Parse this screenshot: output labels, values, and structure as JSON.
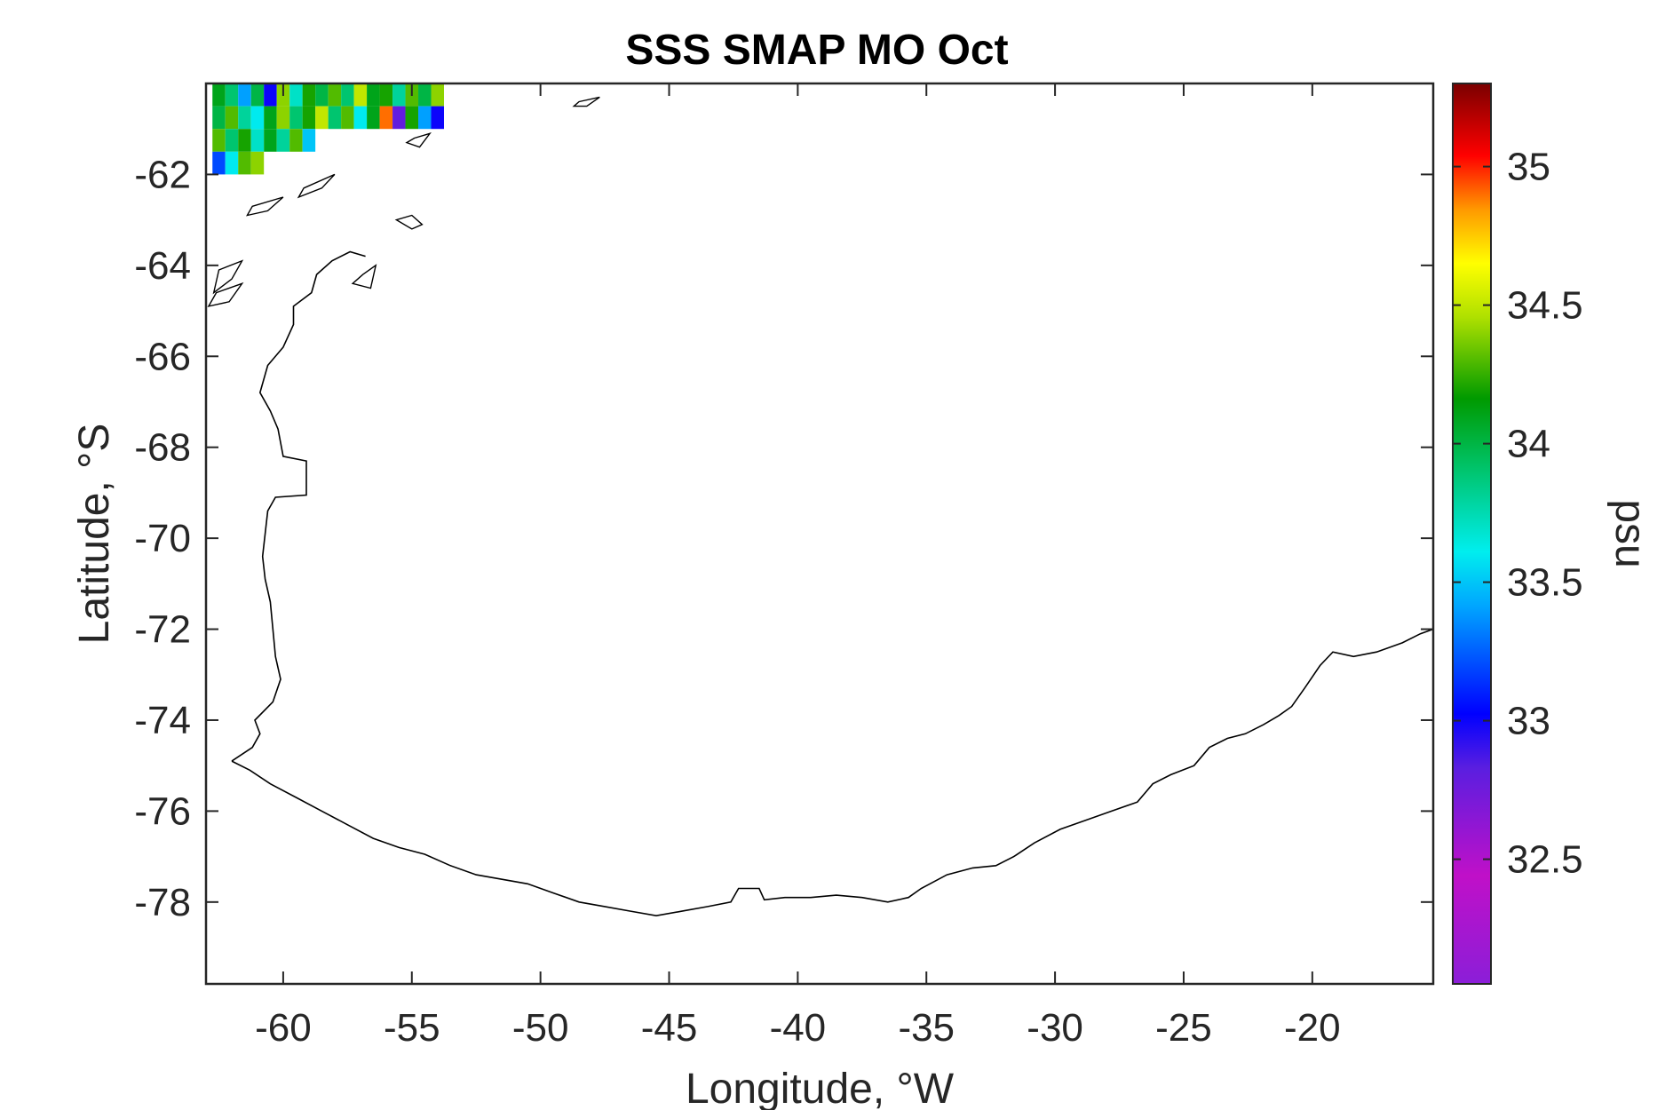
{
  "chart_data": {
    "type": "heatmap",
    "title": "SSS SMAP MO Oct",
    "xlabel": "Longitude, °W",
    "ylabel": "Latitude, °S",
    "xlim": [
      -63,
      -15.3
    ],
    "ylim": [
      -79.8,
      -60.0
    ],
    "x_ticks": [
      -60,
      -55,
      -50,
      -45,
      -40,
      -35,
      -30,
      -25,
      -20
    ],
    "x_tick_labels": [
      "-60",
      "-55",
      "-50",
      "-45",
      "-40",
      "-35",
      "-30",
      "-25",
      "-20"
    ],
    "y_ticks": [
      -62,
      -64,
      -66,
      -68,
      -70,
      -72,
      -74,
      -76,
      -78
    ],
    "y_tick_labels": [
      "-62",
      "-64",
      "-66",
      "-68",
      "-70",
      "-72",
      "-74",
      "-76",
      "-78"
    ],
    "grid": false,
    "colorbar": {
      "label": "psu",
      "range": [
        32.05,
        35.3
      ],
      "ticks": [
        32.5,
        33,
        33.5,
        34,
        34.5,
        35
      ],
      "tick_labels": [
        "32.5",
        "33",
        "33.5",
        "34",
        "34.5",
        "35"
      ]
    },
    "cells": [
      {
        "lon": -62.5,
        "lat": -60.25,
        "v": 34.1
      },
      {
        "lon": -62.0,
        "lat": -60.25,
        "v": 33.9
      },
      {
        "lon": -61.5,
        "lat": -60.25,
        "v": 33.4
      },
      {
        "lon": -61.0,
        "lat": -60.25,
        "v": 34.0
      },
      {
        "lon": -60.5,
        "lat": -60.25,
        "v": 33.0
      },
      {
        "lon": -60.0,
        "lat": -60.25,
        "v": 34.4
      },
      {
        "lon": -59.5,
        "lat": -60.25,
        "v": 33.7
      },
      {
        "lon": -59.0,
        "lat": -60.25,
        "v": 34.2
      },
      {
        "lon": -58.5,
        "lat": -60.25,
        "v": 34.0
      },
      {
        "lon": -58.0,
        "lat": -60.25,
        "v": 34.3
      },
      {
        "lon": -57.5,
        "lat": -60.25,
        "v": 33.9
      },
      {
        "lon": -57.0,
        "lat": -60.25,
        "v": 34.5
      },
      {
        "lon": -56.5,
        "lat": -60.25,
        "v": 34.1
      },
      {
        "lon": -56.0,
        "lat": -60.25,
        "v": 34.2
      },
      {
        "lon": -55.5,
        "lat": -60.25,
        "v": 33.8
      },
      {
        "lon": -55.0,
        "lat": -60.25,
        "v": 34.3
      },
      {
        "lon": -54.5,
        "lat": -60.25,
        "v": 34.0
      },
      {
        "lon": -54.0,
        "lat": -60.25,
        "v": 34.4
      },
      {
        "lon": -62.5,
        "lat": -60.75,
        "v": 34.0
      },
      {
        "lon": -62.0,
        "lat": -60.75,
        "v": 34.3
      },
      {
        "lon": -61.5,
        "lat": -60.75,
        "v": 33.8
      },
      {
        "lon": -61.0,
        "lat": -60.75,
        "v": 33.6
      },
      {
        "lon": -60.5,
        "lat": -60.75,
        "v": 34.1
      },
      {
        "lon": -60.0,
        "lat": -60.75,
        "v": 34.4
      },
      {
        "lon": -59.5,
        "lat": -60.75,
        "v": 33.9
      },
      {
        "lon": -59.0,
        "lat": -60.75,
        "v": 34.2
      },
      {
        "lon": -58.5,
        "lat": -60.75,
        "v": 34.5
      },
      {
        "lon": -58.0,
        "lat": -60.75,
        "v": 33.9
      },
      {
        "lon": -57.5,
        "lat": -60.75,
        "v": 34.3
      },
      {
        "lon": -57.0,
        "lat": -60.75,
        "v": 33.6
      },
      {
        "lon": -56.5,
        "lat": -60.75,
        "v": 34.1
      },
      {
        "lon": -56.0,
        "lat": -60.75,
        "v": 34.9
      },
      {
        "lon": -55.5,
        "lat": -60.75,
        "v": 32.8
      },
      {
        "lon": -55.0,
        "lat": -60.75,
        "v": 34.2
      },
      {
        "lon": -54.5,
        "lat": -60.75,
        "v": 33.4
      },
      {
        "lon": -54.0,
        "lat": -60.75,
        "v": 33.0
      },
      {
        "lon": -62.5,
        "lat": -61.25,
        "v": 34.3
      },
      {
        "lon": -62.0,
        "lat": -61.25,
        "v": 33.9
      },
      {
        "lon": -61.5,
        "lat": -61.25,
        "v": 34.2
      },
      {
        "lon": -61.0,
        "lat": -61.25,
        "v": 33.7
      },
      {
        "lon": -60.5,
        "lat": -61.25,
        "v": 34.1
      },
      {
        "lon": -60.0,
        "lat": -61.25,
        "v": 33.8
      },
      {
        "lon": -59.5,
        "lat": -61.25,
        "v": 34.3
      },
      {
        "lon": -59.0,
        "lat": -61.25,
        "v": 33.5
      },
      {
        "lon": -62.5,
        "lat": -61.75,
        "v": 33.2
      },
      {
        "lon": -62.0,
        "lat": -61.75,
        "v": 33.6
      },
      {
        "lon": -61.5,
        "lat": -61.75,
        "v": 34.3
      },
      {
        "lon": -61.0,
        "lat": -61.75,
        "v": 34.4
      }
    ],
    "coastline": [
      [
        -62.0,
        -74.9
      ],
      [
        -61.3,
        -75.1
      ],
      [
        -60.5,
        -75.4
      ],
      [
        -59.5,
        -75.7
      ],
      [
        -58.5,
        -76.0
      ],
      [
        -57.5,
        -76.3
      ],
      [
        -56.5,
        -76.6
      ],
      [
        -55.5,
        -76.8
      ],
      [
        -54.5,
        -76.95
      ],
      [
        -53.5,
        -77.2
      ],
      [
        -52.5,
        -77.4
      ],
      [
        -51.5,
        -77.5
      ],
      [
        -50.5,
        -77.6
      ],
      [
        -49.5,
        -77.8
      ],
      [
        -48.5,
        -78.0
      ],
      [
        -47.5,
        -78.1
      ],
      [
        -46.5,
        -78.2
      ],
      [
        -45.5,
        -78.3
      ],
      [
        -44.5,
        -78.2
      ],
      [
        -43.5,
        -78.1
      ],
      [
        -42.6,
        -78.0
      ],
      [
        -42.3,
        -77.7
      ],
      [
        -41.5,
        -77.7
      ],
      [
        -41.3,
        -77.95
      ],
      [
        -40.5,
        -77.9
      ],
      [
        -39.5,
        -77.9
      ],
      [
        -38.5,
        -77.85
      ],
      [
        -37.5,
        -77.9
      ],
      [
        -36.5,
        -78.0
      ],
      [
        -35.7,
        -77.9
      ],
      [
        -35.2,
        -77.7
      ],
      [
        -34.2,
        -77.4
      ],
      [
        -33.2,
        -77.25
      ],
      [
        -32.3,
        -77.2
      ],
      [
        -31.6,
        -77.0
      ],
      [
        -30.8,
        -76.7
      ],
      [
        -29.8,
        -76.4
      ],
      [
        -28.8,
        -76.2
      ],
      [
        -27.8,
        -76.0
      ],
      [
        -26.8,
        -75.8
      ],
      [
        -26.2,
        -75.4
      ],
      [
        -25.5,
        -75.2
      ],
      [
        -24.6,
        -75.0
      ],
      [
        -24.0,
        -74.6
      ],
      [
        -23.3,
        -74.4
      ],
      [
        -22.6,
        -74.3
      ],
      [
        -21.9,
        -74.1
      ],
      [
        -21.3,
        -73.9
      ],
      [
        -20.8,
        -73.7
      ],
      [
        -20.3,
        -73.3
      ],
      [
        -19.7,
        -72.8
      ],
      [
        -19.2,
        -72.5
      ],
      [
        -18.4,
        -72.6
      ],
      [
        -17.5,
        -72.5
      ],
      [
        -16.5,
        -72.3
      ],
      [
        -15.8,
        -72.1
      ],
      [
        -15.3,
        -72.0
      ]
    ],
    "peninsula_coast": [
      [
        -62.0,
        -74.9
      ],
      [
        -61.2,
        -74.6
      ],
      [
        -60.9,
        -74.3
      ],
      [
        -61.1,
        -74.0
      ],
      [
        -60.4,
        -73.6
      ],
      [
        -60.1,
        -73.1
      ],
      [
        -60.3,
        -72.6
      ],
      [
        -60.4,
        -72.0
      ],
      [
        -60.5,
        -71.4
      ],
      [
        -60.7,
        -70.9
      ],
      [
        -60.8,
        -70.4
      ],
      [
        -60.7,
        -69.9
      ],
      [
        -60.6,
        -69.4
      ],
      [
        -60.3,
        -69.1
      ],
      [
        -59.1,
        -69.05
      ],
      [
        -59.1,
        -68.3
      ],
      [
        -60.0,
        -68.2
      ],
      [
        -60.2,
        -67.6
      ],
      [
        -60.5,
        -67.2
      ],
      [
        -60.9,
        -66.8
      ],
      [
        -60.6,
        -66.2
      ],
      [
        -60.0,
        -65.8
      ],
      [
        -59.6,
        -65.3
      ],
      [
        -59.6,
        -64.9
      ],
      [
        -58.9,
        -64.6
      ],
      [
        -58.7,
        -64.2
      ],
      [
        -58.1,
        -63.9
      ],
      [
        -57.4,
        -63.7
      ],
      [
        -56.8,
        -63.8
      ]
    ],
    "islands": [
      [
        [
          -55.0,
          -63.2
        ],
        [
          -54.6,
          -63.1
        ],
        [
          -55.0,
          -62.9
        ],
        [
          -55.6,
          -63.0
        ],
        [
          -55.0,
          -63.2
        ]
      ],
      [
        [
          -56.9,
          -64.2
        ],
        [
          -56.4,
          -64.0
        ],
        [
          -56.6,
          -64.5
        ],
        [
          -57.3,
          -64.4
        ],
        [
          -56.9,
          -64.2
        ]
      ],
      [
        [
          -54.9,
          -61.2
        ],
        [
          -54.3,
          -61.1
        ],
        [
          -54.7,
          -61.4
        ],
        [
          -55.2,
          -61.3
        ],
        [
          -54.9,
          -61.2
        ]
      ],
      [
        [
          -59.2,
          -62.3
        ],
        [
          -58.0,
          -62.0
        ],
        [
          -58.5,
          -62.3
        ],
        [
          -59.4,
          -62.5
        ],
        [
          -59.2,
          -62.3
        ]
      ],
      [
        [
          -61.2,
          -62.7
        ],
        [
          -60.0,
          -62.5
        ],
        [
          -60.6,
          -62.8
        ],
        [
          -61.4,
          -62.9
        ],
        [
          -61.2,
          -62.7
        ]
      ],
      [
        [
          -62.5,
          -64.1
        ],
        [
          -61.6,
          -63.9
        ],
        [
          -62.0,
          -64.3
        ],
        [
          -62.7,
          -64.6
        ],
        [
          -62.5,
          -64.1
        ]
      ],
      [
        [
          -62.6,
          -64.6
        ],
        [
          -61.6,
          -64.4
        ],
        [
          -62.1,
          -64.8
        ],
        [
          -62.9,
          -64.9
        ],
        [
          -62.6,
          -64.6
        ]
      ],
      [
        [
          -48.5,
          -60.4
        ],
        [
          -47.7,
          -60.3
        ],
        [
          -48.2,
          -60.5
        ],
        [
          -48.7,
          -60.5
        ],
        [
          -48.5,
          -60.4
        ]
      ]
    ]
  }
}
